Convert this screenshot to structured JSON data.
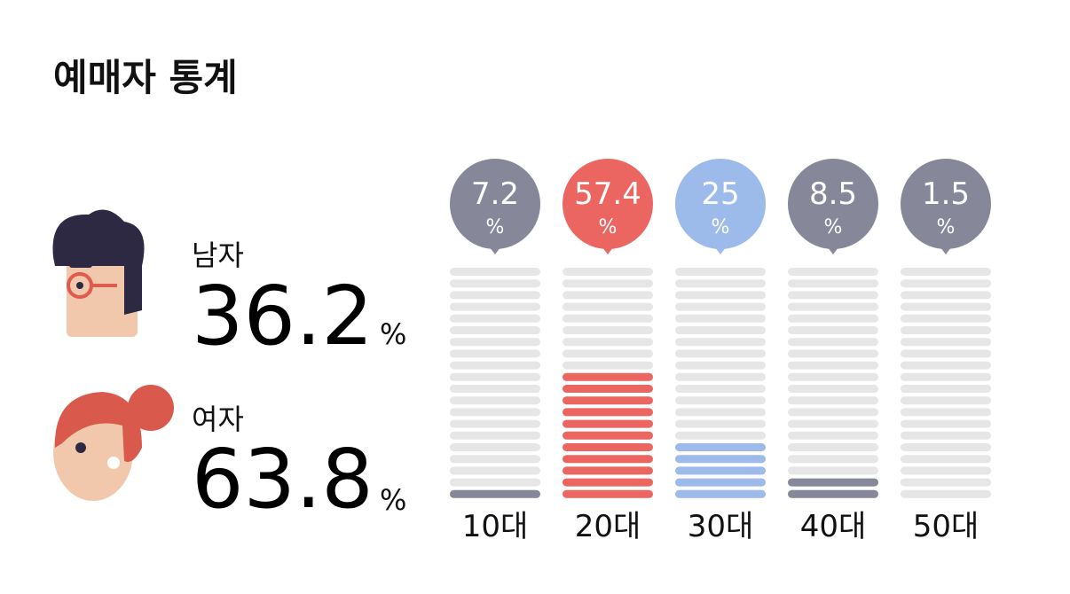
{
  "title": "예매자 통계",
  "unit": "%",
  "gender": [
    {
      "label": "남자",
      "value": 36.2
    },
    {
      "label": "여자",
      "value": 63.8
    }
  ],
  "chart_data": {
    "type": "bar",
    "categories": [
      "10대",
      "20대",
      "30대",
      "40대",
      "50대"
    ],
    "values": [
      7.2,
      57.4,
      25,
      8.5,
      1.5
    ],
    "colors": [
      "#868899",
      "#ec6661",
      "#9dbbea",
      "#868899",
      "#868899"
    ],
    "ylim": [
      0,
      100
    ]
  }
}
